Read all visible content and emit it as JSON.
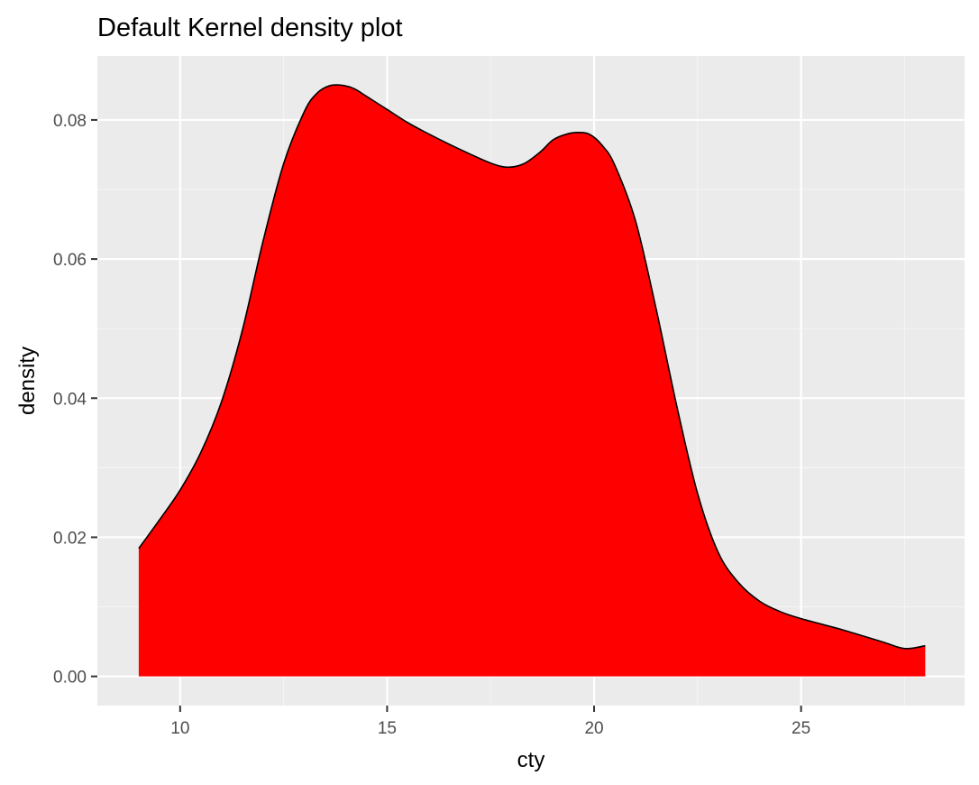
{
  "chart_data": {
    "type": "area",
    "title": "Default Kernel density plot",
    "xlabel": "cty",
    "ylabel": "density",
    "xlim": [
      8.0,
      28.95
    ],
    "ylim": [
      -0.0042,
      0.0892
    ],
    "x_ticks": [
      10,
      15,
      20,
      25
    ],
    "x_tick_labels": [
      "10",
      "15",
      "20",
      "25"
    ],
    "y_ticks": [
      0.0,
      0.02,
      0.04,
      0.06,
      0.08
    ],
    "y_tick_labels": [
      "0.00",
      "0.02",
      "0.04",
      "0.06",
      "0.08"
    ],
    "grid": true,
    "legend": "none",
    "series": [
      {
        "x": [
          9.0,
          9.5,
          10.0,
          10.5,
          11.0,
          11.5,
          12.0,
          12.5,
          13.0,
          13.3,
          13.6,
          13.9,
          14.2,
          14.5,
          15.0,
          15.5,
          16.0,
          16.5,
          17.0,
          17.5,
          17.9,
          18.3,
          18.7,
          19.0,
          19.3,
          19.6,
          19.9,
          20.2,
          20.5,
          21.0,
          21.5,
          22.0,
          22.5,
          23.0,
          23.5,
          24.0,
          24.5,
          25.0,
          25.5,
          26.0,
          26.5,
          27.0,
          27.5,
          28.0
        ],
        "y": [
          0.0184,
          0.0225,
          0.0268,
          0.0322,
          0.0395,
          0.0497,
          0.0625,
          0.0737,
          0.0812,
          0.0838,
          0.0849,
          0.085,
          0.0845,
          0.0834,
          0.0815,
          0.0796,
          0.078,
          0.0765,
          0.0751,
          0.0738,
          0.0732,
          0.0737,
          0.0754,
          0.0771,
          0.0779,
          0.0782,
          0.0779,
          0.0763,
          0.0735,
          0.0655,
          0.0528,
          0.0388,
          0.0263,
          0.0178,
          0.0134,
          0.0108,
          0.0093,
          0.0083,
          0.0075,
          0.0067,
          0.0058,
          0.0049,
          0.004,
          0.0044
        ],
        "fill": "#ff0000",
        "line_color": "#000000"
      }
    ],
    "colors": {
      "panel_background": "#ebebeb",
      "grid_major": "#ffffff",
      "grid_minor": "#f5f5f5",
      "tick_color": "#333333",
      "tick_label_color": "#4d4d4d"
    }
  }
}
